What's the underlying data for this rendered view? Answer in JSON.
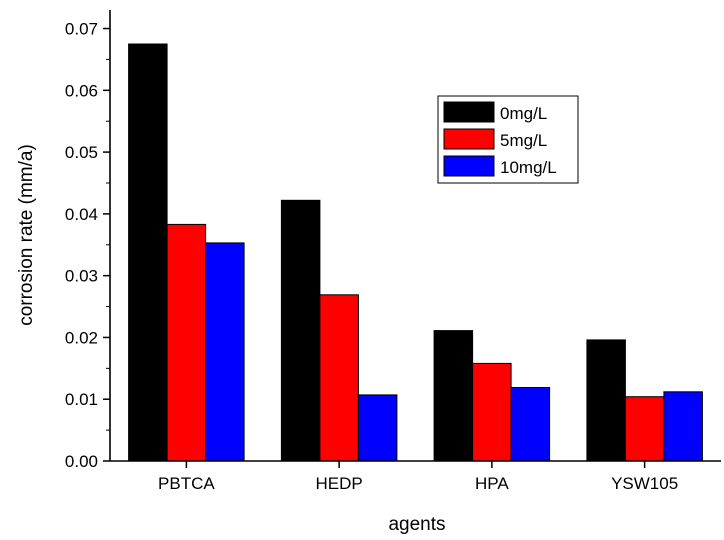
{
  "chart_data": {
    "type": "bar",
    "title": "",
    "xlabel": "agents",
    "ylabel": "corrosion rate (mm/a)",
    "categories": [
      "PBTCA",
      "HEDP",
      "HPA",
      "YSW105"
    ],
    "series": [
      {
        "name": "0mg/L",
        "color": "#000000",
        "values": [
          0.0675,
          0.0422,
          0.0211,
          0.0196
        ]
      },
      {
        "name": "5mg/L",
        "color": "#ff0000",
        "values": [
          0.0383,
          0.0269,
          0.0158,
          0.0104
        ]
      },
      {
        "name": "10mg/L",
        "color": "#0000ff",
        "values": [
          0.0353,
          0.0107,
          0.0119,
          0.0112
        ]
      }
    ],
    "ylim": [
      0,
      0.073
    ],
    "yticks": [
      "0.00",
      "0.01",
      "0.02",
      "0.03",
      "0.04",
      "0.05",
      "0.06",
      "0.07"
    ],
    "legend_position": "top-right",
    "grid": false
  }
}
